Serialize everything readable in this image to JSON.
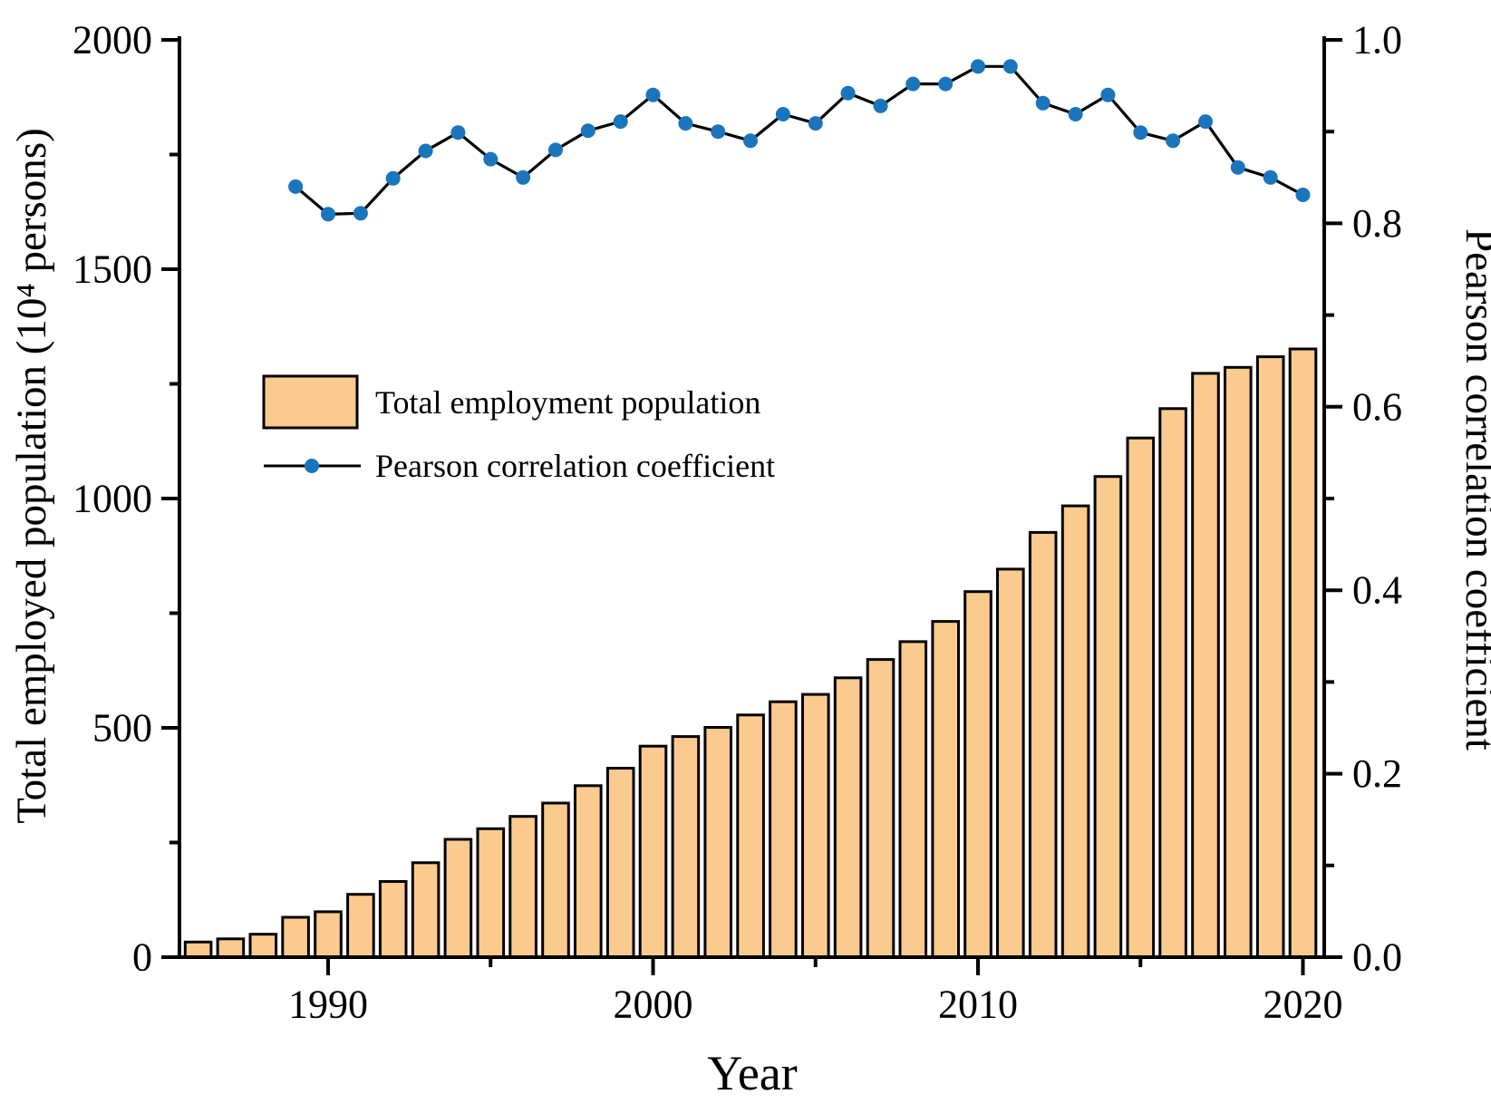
{
  "colors": {
    "bar_fill": "#fbca8e",
    "bar_stroke": "#000000",
    "line_color": "#000000",
    "marker_color": "#1b75bc",
    "axis_color": "#000000",
    "background": "#ffffff"
  },
  "legend": {
    "bar_label": "Total employment population",
    "line_label": "Pearson correlation coefficient"
  },
  "chart_data": {
    "type": "combo-bar-line",
    "title": "",
    "xlabel": "Year",
    "ylabel_left": "Total employed population (10⁴ persons)",
    "ylabel_right": "Pearson correlation coefficient",
    "grid": false,
    "legend_position": "upper-left-inside",
    "x_axis": {
      "major_ticks": [
        1990,
        2000,
        2010,
        2020
      ],
      "minor_ticks": [
        1995,
        2005,
        2015
      ],
      "range": [
        1985.4,
        2020.7
      ]
    },
    "y_left_axis": {
      "tick_labels": [
        "0",
        "500",
        "1000",
        "1500",
        "2000"
      ],
      "tick_values": [
        0,
        500,
        1000,
        1500,
        2000
      ],
      "minor_tick_values": [
        250,
        750,
        1250,
        1750
      ],
      "range": [
        0,
        2000
      ]
    },
    "y_right_axis": {
      "tick_labels": [
        "0.0",
        "0.2",
        "0.4",
        "0.6",
        "0.8",
        "1.0"
      ],
      "tick_values": [
        0,
        0.2,
        0.4,
        0.6,
        0.8,
        1.0
      ],
      "minor_tick_values": [
        0.1,
        0.3,
        0.5,
        0.7,
        0.9
      ],
      "range": [
        0,
        1
      ]
    },
    "series": [
      {
        "name": "Total employment population",
        "type": "bar",
        "axis": "left",
        "years": [
          1986,
          1987,
          1988,
          1989,
          1990,
          1991,
          1992,
          1993,
          1994,
          1995,
          1996,
          1997,
          1998,
          1999,
          2000,
          2001,
          2002,
          2003,
          2004,
          2005,
          2006,
          2007,
          2008,
          2009,
          2010,
          2011,
          2012,
          2013,
          2014,
          2015,
          2016,
          2017,
          2018,
          2019,
          2020
        ],
        "values": [
          33,
          40,
          50,
          87,
          99,
          137,
          165,
          206,
          257,
          280,
          307,
          336,
          374,
          412,
          460,
          481,
          501,
          528,
          557,
          573,
          609,
          649,
          688,
          732,
          797,
          846,
          926,
          984,
          1048,
          1132,
          1196,
          1273,
          1286,
          1309,
          1326
        ]
      },
      {
        "name": "Pearson correlation coefficient",
        "type": "line",
        "axis": "right",
        "years": [
          1989,
          1990,
          1991,
          1992,
          1993,
          1994,
          1995,
          1996,
          1997,
          1998,
          1999,
          2000,
          2001,
          2002,
          2003,
          2004,
          2005,
          2006,
          2007,
          2008,
          2009,
          2010,
          2011,
          2012,
          2013,
          2014,
          2015,
          2016,
          2017,
          2018,
          2019,
          2020
        ],
        "values": [
          0.84,
          0.81,
          0.811,
          0.849,
          0.879,
          0.899,
          0.87,
          0.85,
          0.88,
          0.901,
          0.911,
          0.94,
          0.909,
          0.9,
          0.89,
          0.919,
          0.909,
          0.942,
          0.928,
          0.952,
          0.952,
          0.971,
          0.971,
          0.931,
          0.919,
          0.94,
          0.899,
          0.89,
          0.911,
          0.861,
          0.85,
          0.831
        ]
      }
    ]
  }
}
